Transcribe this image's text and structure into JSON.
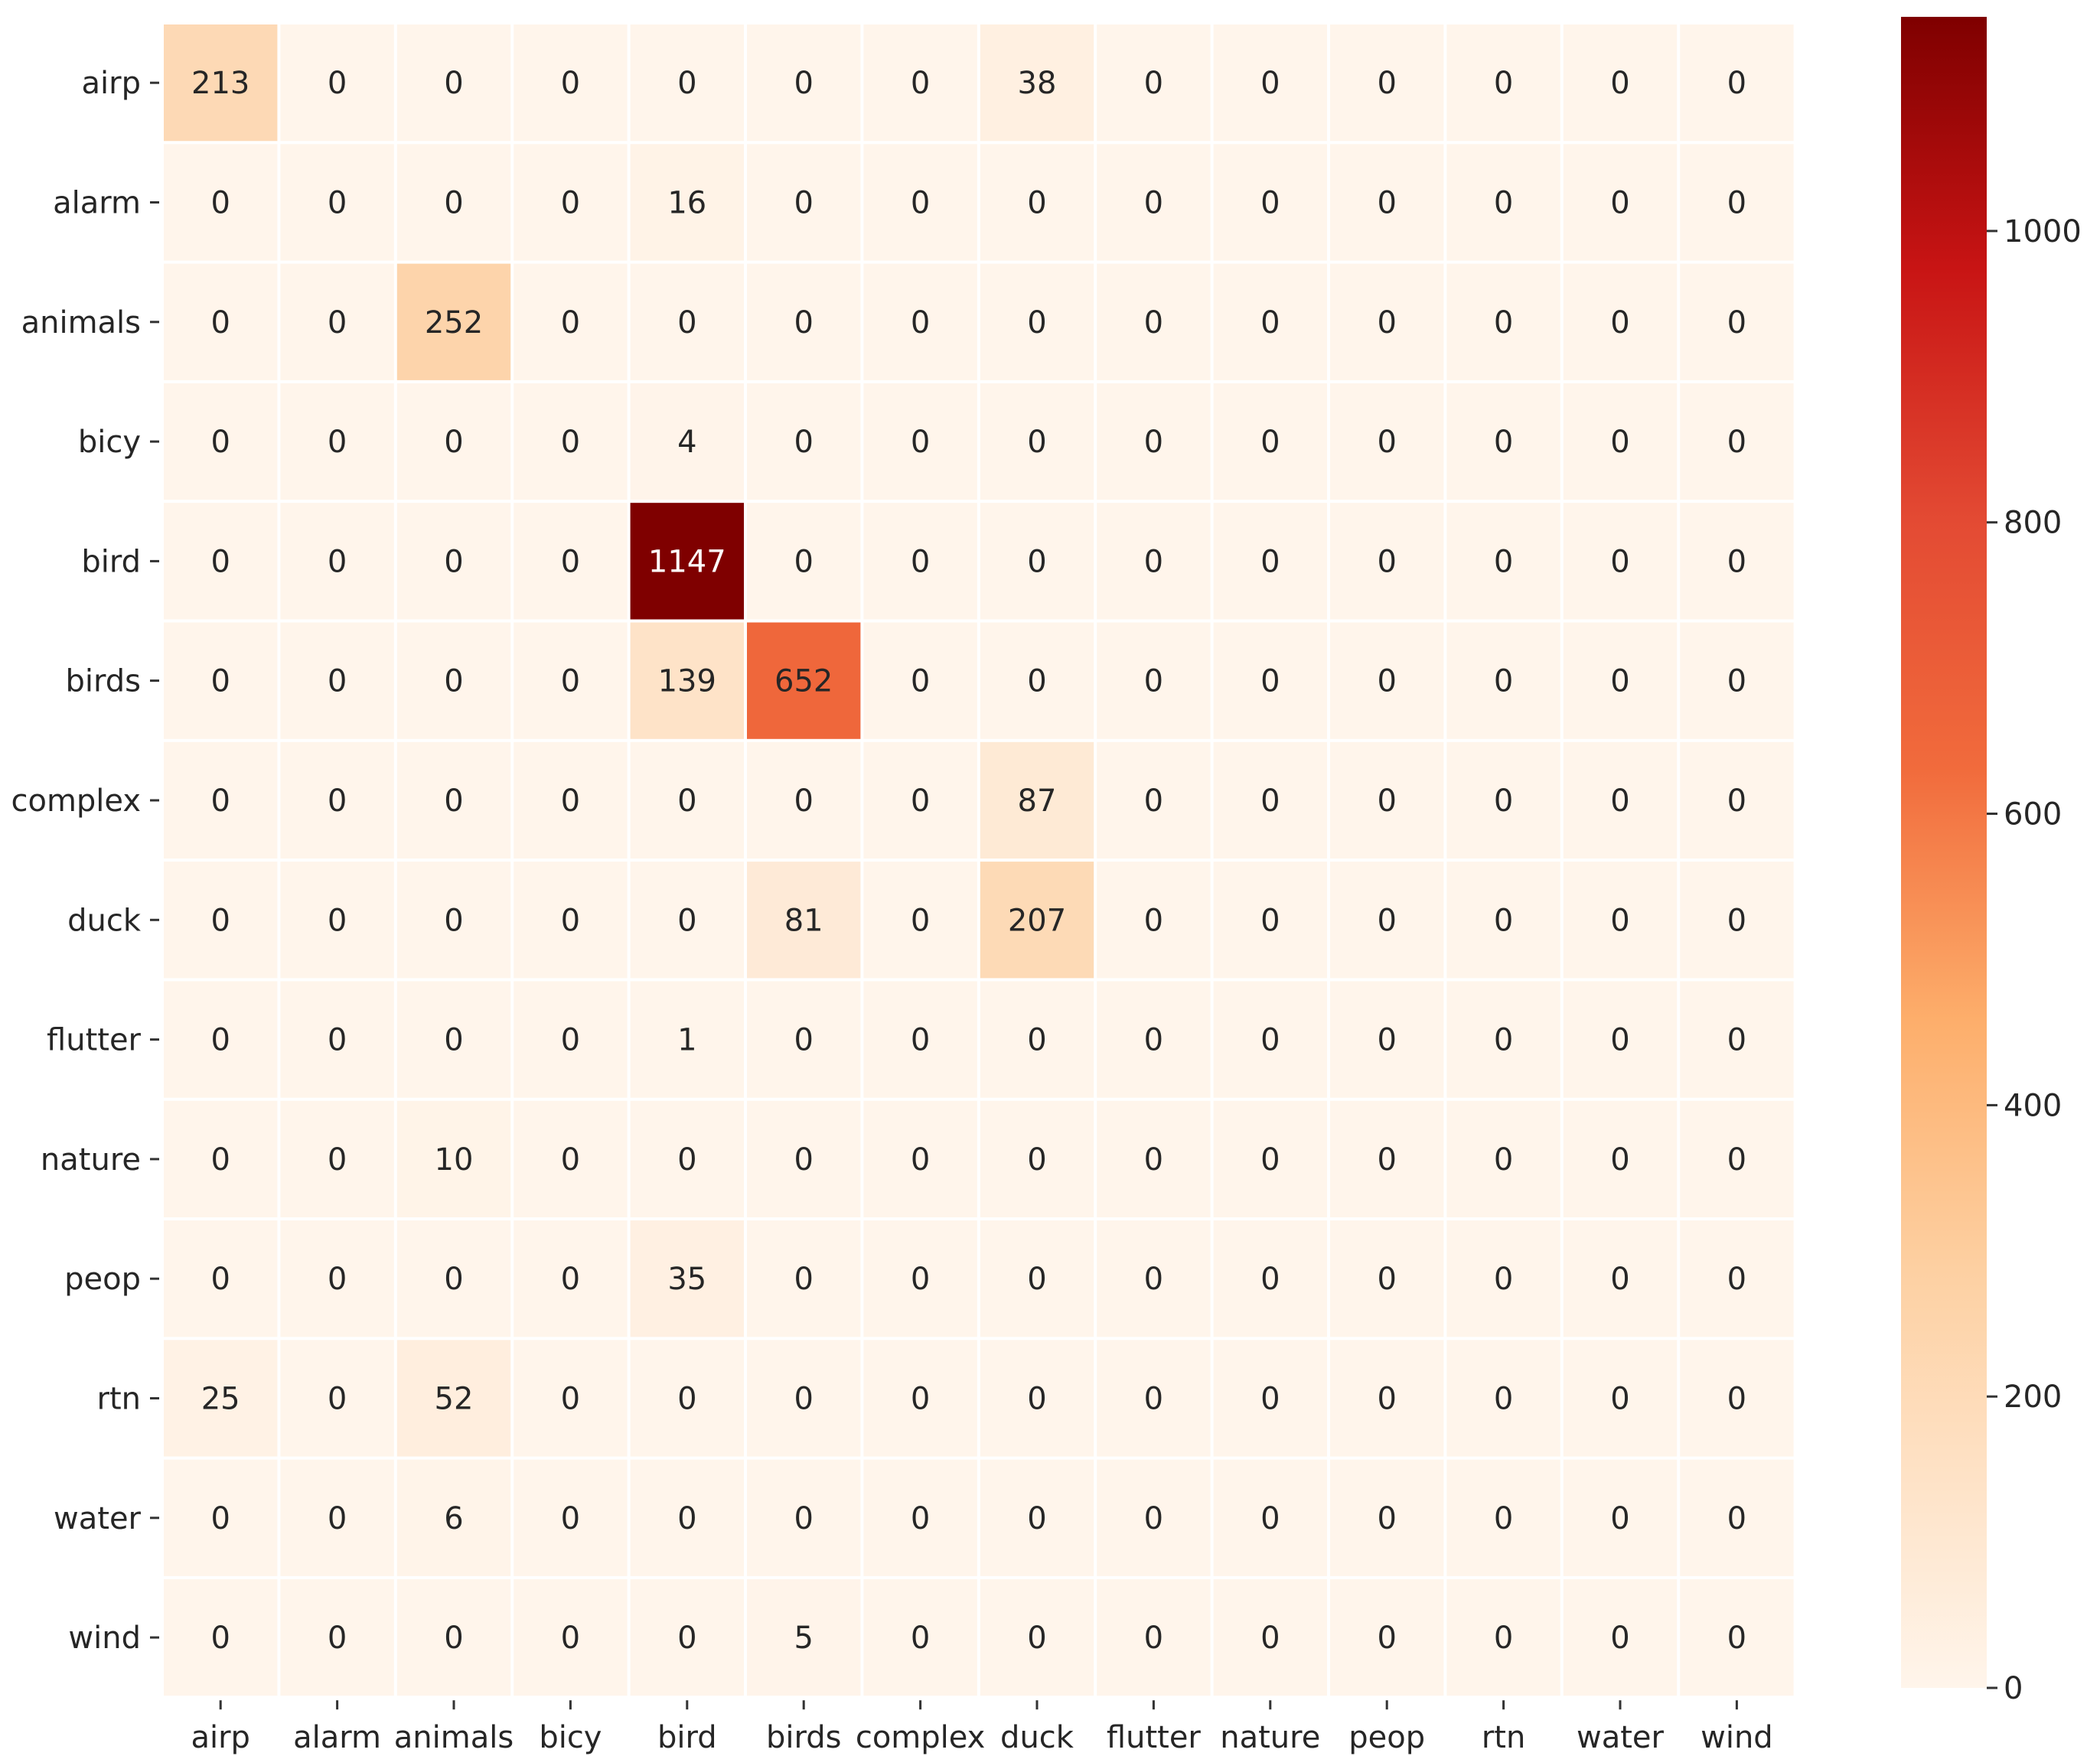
{
  "chart_data": {
    "type": "heatmap",
    "title": "",
    "xlabel": "",
    "ylabel": "",
    "x_categories": [
      "airp",
      "alarm",
      "animals",
      "bicy",
      "bird",
      "birds",
      "complex",
      "duck",
      "flutter",
      "nature",
      "peop",
      "rtn",
      "water",
      "wind"
    ],
    "y_categories": [
      "airp",
      "alarm",
      "animals",
      "bicy",
      "bird",
      "birds",
      "complex",
      "duck",
      "flutter",
      "nature",
      "peop",
      "rtn",
      "water",
      "wind"
    ],
    "matrix": [
      [
        213,
        0,
        0,
        0,
        0,
        0,
        0,
        38,
        0,
        0,
        0,
        0,
        0,
        0
      ],
      [
        0,
        0,
        0,
        0,
        16,
        0,
        0,
        0,
        0,
        0,
        0,
        0,
        0,
        0
      ],
      [
        0,
        0,
        252,
        0,
        0,
        0,
        0,
        0,
        0,
        0,
        0,
        0,
        0,
        0
      ],
      [
        0,
        0,
        0,
        0,
        4,
        0,
        0,
        0,
        0,
        0,
        0,
        0,
        0,
        0
      ],
      [
        0,
        0,
        0,
        0,
        1147,
        0,
        0,
        0,
        0,
        0,
        0,
        0,
        0,
        0
      ],
      [
        0,
        0,
        0,
        0,
        139,
        652,
        0,
        0,
        0,
        0,
        0,
        0,
        0,
        0
      ],
      [
        0,
        0,
        0,
        0,
        0,
        0,
        0,
        87,
        0,
        0,
        0,
        0,
        0,
        0
      ],
      [
        0,
        0,
        0,
        0,
        0,
        81,
        0,
        207,
        0,
        0,
        0,
        0,
        0,
        0
      ],
      [
        0,
        0,
        0,
        0,
        1,
        0,
        0,
        0,
        0,
        0,
        0,
        0,
        0,
        0
      ],
      [
        0,
        0,
        10,
        0,
        0,
        0,
        0,
        0,
        0,
        0,
        0,
        0,
        0,
        0
      ],
      [
        0,
        0,
        0,
        0,
        35,
        0,
        0,
        0,
        0,
        0,
        0,
        0,
        0,
        0
      ],
      [
        25,
        0,
        52,
        0,
        0,
        0,
        0,
        0,
        0,
        0,
        0,
        0,
        0,
        0
      ],
      [
        0,
        0,
        6,
        0,
        0,
        0,
        0,
        0,
        0,
        0,
        0,
        0,
        0,
        0
      ],
      [
        0,
        0,
        0,
        0,
        0,
        5,
        0,
        0,
        0,
        0,
        0,
        0,
        0,
        0
      ]
    ],
    "colormap": "OrRd",
    "colorbar": {
      "min": 0,
      "max": 1147,
      "ticks": [
        0,
        200,
        400,
        600,
        800,
        1000
      ],
      "tick_labels": [
        "0",
        "200",
        "400",
        "600",
        "800",
        "1000"
      ],
      "placement": "right"
    },
    "grid": true,
    "legend": "none"
  }
}
